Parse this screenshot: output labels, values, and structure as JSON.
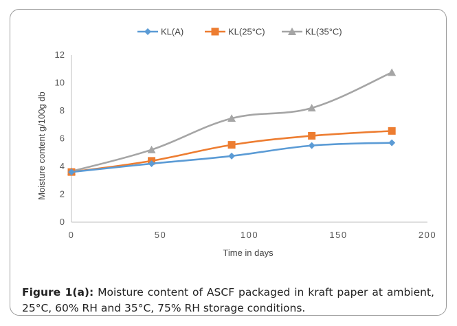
{
  "chart_data": {
    "type": "line",
    "title": "",
    "xlabel": "Time in days",
    "ylabel": "Moisture content g/100g db",
    "xlim": [
      0,
      200
    ],
    "ylim": [
      0,
      12
    ],
    "xticks": [
      0,
      50,
      100,
      150,
      200
    ],
    "yticks": [
      0,
      2,
      4,
      6,
      8,
      10,
      12
    ],
    "x": [
      0,
      45,
      90,
      135,
      180
    ],
    "legend_position": "top",
    "grid": false,
    "series": [
      {
        "name": "KL(A)",
        "color": "#5b9bd5",
        "marker": "diamond",
        "values": [
          3.6,
          4.2,
          4.75,
          5.5,
          5.7
        ]
      },
      {
        "name": "KL(25°C)",
        "color": "#ed7d31",
        "marker": "square",
        "values": [
          3.6,
          4.4,
          5.55,
          6.2,
          6.55
        ]
      },
      {
        "name": "KL(35°C)",
        "color": "#a5a5a5",
        "marker": "triangle",
        "values": [
          3.65,
          5.2,
          7.45,
          8.2,
          10.75
        ]
      }
    ]
  },
  "caption": {
    "label": "Figure 1(a):",
    "text": " Moisture content of ASCF packaged in kraft paper at ambient, 25°C, 60% RH and 35°C, 75% RH storage conditions."
  }
}
